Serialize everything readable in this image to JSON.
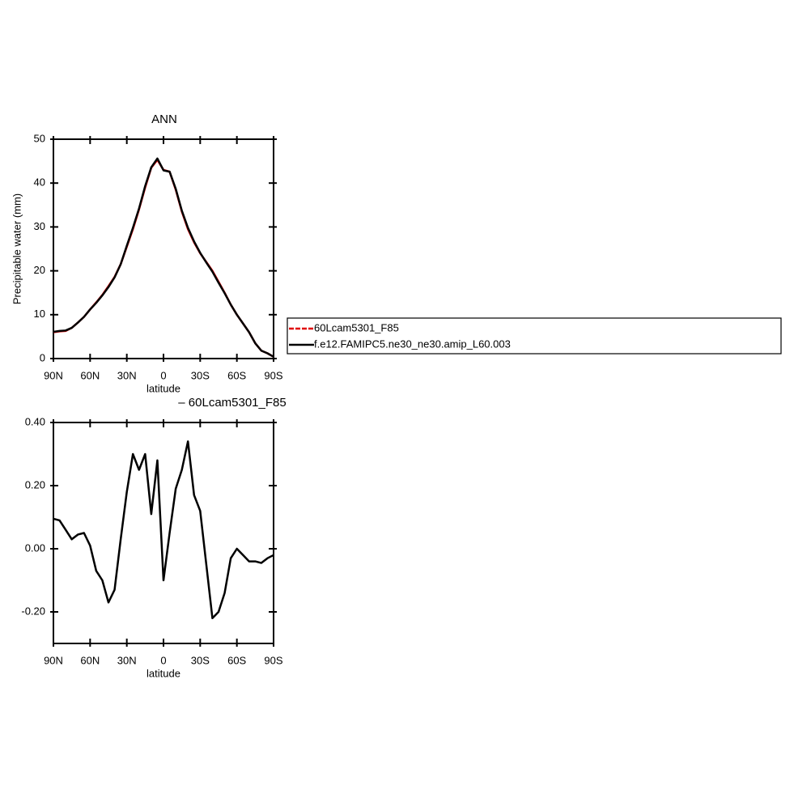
{
  "chart_data": [
    {
      "type": "line",
      "title": "ANN",
      "xlabel": "latitude",
      "ylabel": "Precipitable water (mm)",
      "x": [
        90,
        85,
        80,
        75,
        70,
        65,
        60,
        55,
        50,
        45,
        40,
        35,
        30,
        25,
        20,
        15,
        10,
        5,
        0,
        -5,
        -10,
        -15,
        -20,
        -25,
        -30,
        -35,
        -40,
        -45,
        -50,
        -55,
        -60,
        -65,
        -70,
        -75,
        -80,
        -85,
        -90
      ],
      "series": [
        {
          "name": "60Lcam5301_F85",
          "color": "#e00000",
          "values": [
            6.0,
            6.2,
            6.3,
            7.0,
            8.2,
            9.5,
            11.2,
            12.8,
            14.5,
            16.5,
            18.6,
            21.5,
            25.5,
            29.5,
            34,
            39,
            43.5,
            45.3,
            43,
            42.6,
            38.5,
            33.5,
            29.5,
            26.5,
            24.0,
            22,
            20,
            17.5,
            15,
            12.3,
            10,
            8,
            6,
            3.5,
            1.8,
            1.2,
            0.4
          ]
        },
        {
          "name": "f.e12.FAMIPC5.ne30_ne30.amip_L60.003",
          "color": "#000000",
          "values": [
            6.1,
            6.3,
            6.4,
            7.0,
            8.2,
            9.5,
            11.2,
            12.7,
            14.4,
            16.3,
            18.5,
            21.5,
            25.7,
            29.8,
            34.2,
            39.3,
            43.6,
            45.6,
            42.9,
            42.6,
            38.7,
            33.7,
            29.8,
            26.7,
            24.1,
            21.9,
            19.8,
            17.3,
            14.9,
            12.3,
            10,
            8,
            6,
            3.5,
            1.8,
            1.2,
            0.4
          ]
        }
      ],
      "xlim": [
        90,
        -90
      ],
      "xticks": [
        {
          "value": 90,
          "label": "90N"
        },
        {
          "value": 60,
          "label": "60N"
        },
        {
          "value": 30,
          "label": "30N"
        },
        0,
        {
          "value": -30,
          "label": "30S"
        },
        {
          "value": -60,
          "label": "60S"
        },
        {
          "value": -90,
          "label": "90S"
        }
      ],
      "ylim": [
        0,
        50
      ],
      "yticks": [
        0,
        10,
        20,
        30,
        40,
        50
      ]
    },
    {
      "type": "line",
      "title": "– 60Lcam5301_F85",
      "xlabel": "latitude",
      "x": [
        90,
        85,
        80,
        75,
        70,
        65,
        60,
        55,
        50,
        45,
        40,
        35,
        30,
        25,
        20,
        15,
        10,
        5,
        0,
        -5,
        -10,
        -15,
        -20,
        -25,
        -30,
        -35,
        -40,
        -45,
        -50,
        -55,
        -60,
        -65,
        -70,
        -75,
        -80,
        -85,
        -90
      ],
      "series": [
        {
          "color": "#000000",
          "values": [
            0.095,
            0.09,
            0.06,
            0.03,
            0.045,
            0.05,
            0.01,
            -0.07,
            -0.1,
            -0.17,
            -0.13,
            0.03,
            0.18,
            0.3,
            0.25,
            0.3,
            0.11,
            0.28,
            -0.1,
            0.05,
            0.19,
            0.25,
            0.34,
            0.17,
            0.12,
            -0.05,
            -0.22,
            -0.2,
            -0.14,
            -0.03,
            0.0,
            -0.02,
            -0.04,
            -0.04,
            -0.045,
            -0.03,
            -0.02
          ]
        }
      ],
      "xlim": [
        90,
        -90
      ],
      "xticks": [
        {
          "value": 90,
          "label": "90N"
        },
        {
          "value": 60,
          "label": "60N"
        },
        {
          "value": 30,
          "label": "30N"
        },
        0,
        {
          "value": -30,
          "label": "30S"
        },
        {
          "value": -60,
          "label": "60S"
        },
        {
          "value": -90,
          "label": "90S"
        }
      ],
      "ylim": [
        -0.3,
        0.4
      ],
      "yticks": [
        {
          "value": -0.2,
          "label": "-0.20"
        },
        {
          "value": 0,
          "label": "0.00"
        },
        {
          "value": 0.2,
          "label": "0.20"
        },
        {
          "value": 0.4,
          "label": "0.40"
        }
      ]
    }
  ]
}
